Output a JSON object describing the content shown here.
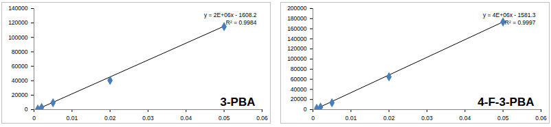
{
  "chart_data": [
    {
      "type": "scatter",
      "title": "3-PBA",
      "x": [
        0.001,
        0.002,
        0.005,
        0.02,
        0.05
      ],
      "values": [
        900,
        3000,
        9500,
        40500,
        115000
      ],
      "color": "#4a7ebb",
      "marker": "diamond",
      "trendline": {
        "x": [
          0.001,
          0.05
        ],
        "values": [
          700,
          115500
        ],
        "color": "#000000"
      },
      "annotations": [
        "y = 2E+06x - 1608.2",
        "R² = 0.9984"
      ],
      "xlim": [
        0,
        0.06
      ],
      "xticks": [
        0,
        0.01,
        0.02,
        0.03,
        0.04,
        0.05,
        0.06
      ],
      "ylim": [
        0,
        140000
      ],
      "yticks": [
        0,
        20000,
        40000,
        60000,
        80000,
        100000,
        120000,
        140000
      ],
      "grid": false
    },
    {
      "type": "scatter",
      "title": "4-F-3-PBA",
      "x": [
        0.001,
        0.002,
        0.005,
        0.02,
        0.05
      ],
      "values": [
        2500,
        5000,
        13500,
        65000,
        173500
      ],
      "color": "#4a7ebb",
      "marker": "diamond",
      "trendline": {
        "x": [
          0.001,
          0.05
        ],
        "values": [
          2000,
          173500
        ],
        "color": "#000000"
      },
      "annotations": [
        "y = 4E+06x - 1581.3",
        "R² = 0.9997"
      ],
      "xlim": [
        0,
        0.06
      ],
      "xticks": [
        0,
        0.01,
        0.02,
        0.03,
        0.04,
        0.05,
        0.06
      ],
      "ylim": [
        0,
        200000
      ],
      "yticks": [
        0,
        20000,
        40000,
        60000,
        80000,
        100000,
        120000,
        140000,
        160000,
        180000,
        200000
      ],
      "grid": false
    }
  ]
}
